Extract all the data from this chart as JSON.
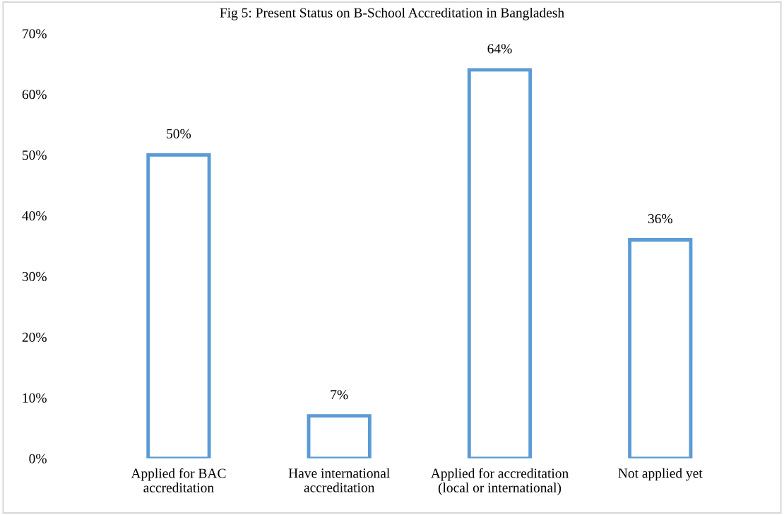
{
  "chart_data": {
    "type": "bar",
    "title": "Fig 5: Present Status on B-School Accreditation in Bangladesh",
    "categories": [
      "Applied for BAC\naccreditation",
      "Have international\naccreditation",
      "Applied for accreditation\n(local or international)",
      "Not applied yet"
    ],
    "values": [
      50,
      7,
      64,
      36
    ],
    "value_labels": [
      "50%",
      "7%",
      "64%",
      "36%"
    ],
    "color": "#5b9bd5",
    "ylim": [
      0,
      70
    ],
    "yticks": [
      {
        "value": 0,
        "label": "0%"
      },
      {
        "value": 10,
        "label": "10%"
      },
      {
        "value": 20,
        "label": "20%"
      },
      {
        "value": 30,
        "label": "30%"
      },
      {
        "value": 40,
        "label": "40%"
      },
      {
        "value": 50,
        "label": "50%"
      },
      {
        "value": 60,
        "label": "60%"
      },
      {
        "value": 70,
        "label": "70%"
      }
    ],
    "grid": false,
    "legend": false
  }
}
